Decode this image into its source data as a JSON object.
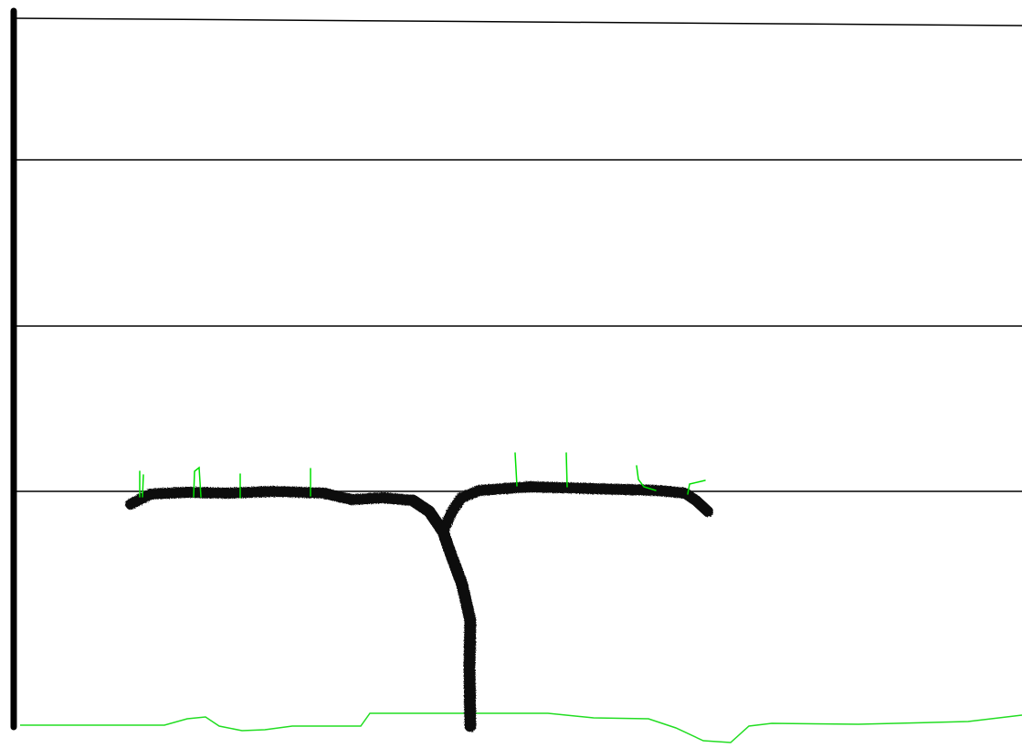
{
  "colors": {
    "background": "#ffffff",
    "trellis_wire": "#000000",
    "post": "#000000",
    "vine": "#0b0b0b",
    "shoots": "#00e000",
    "ground": "#22dd22"
  }
}
